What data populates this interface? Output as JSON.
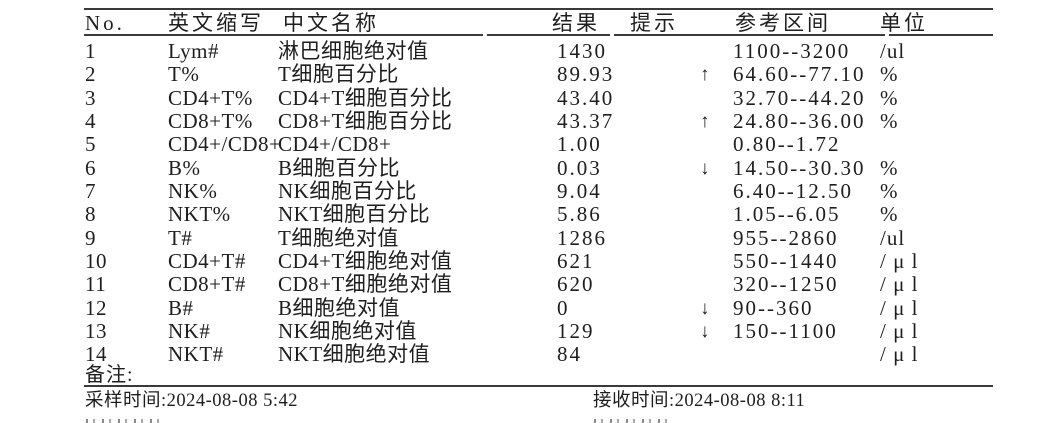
{
  "table": {
    "headers": {
      "no": "No.",
      "abbr": "英文缩写",
      "name": "中文名称",
      "result": "结果",
      "flag": "提示",
      "ref": "参考区间",
      "unit": "单位"
    },
    "rows": [
      {
        "no": "1",
        "abbr": "Lym#",
        "name": "淋巴细胞绝对值",
        "result": "1430",
        "flag": "",
        "ref": "1100--3200",
        "unit": "/ul"
      },
      {
        "no": "2",
        "abbr": "T%",
        "name": "T细胞百分比",
        "result": "89.93",
        "flag": "↑",
        "ref": "64.60--77.10",
        "unit": "%"
      },
      {
        "no": "3",
        "abbr": "CD4+T%",
        "name": "CD4+T细胞百分比",
        "result": "43.40",
        "flag": "",
        "ref": "32.70--44.20",
        "unit": "%"
      },
      {
        "no": "4",
        "abbr": "CD8+T%",
        "name": "CD8+T细胞百分比",
        "result": "43.37",
        "flag": "↑",
        "ref": "24.80--36.00",
        "unit": "%"
      },
      {
        "no": "5",
        "abbr": "CD4+/CD8+",
        "name": "CD4+/CD8+",
        "result": "1.00",
        "flag": "",
        "ref": "0.80--1.72",
        "unit": ""
      },
      {
        "no": "6",
        "abbr": "B%",
        "name": "B细胞百分比",
        "result": "0.03",
        "flag": "↓",
        "ref": "14.50--30.30",
        "unit": "%"
      },
      {
        "no": "7",
        "abbr": "NK%",
        "name": "NK细胞百分比",
        "result": "9.04",
        "flag": "",
        "ref": "6.40--12.50",
        "unit": "%"
      },
      {
        "no": "8",
        "abbr": "NKT%",
        "name": "NKT细胞百分比",
        "result": "5.86",
        "flag": "",
        "ref": "1.05--6.05",
        "unit": "%"
      },
      {
        "no": "9",
        "abbr": "T#",
        "name": "T细胞绝对值",
        "result": "1286",
        "flag": "",
        "ref": "955--2860",
        "unit": "/ul"
      },
      {
        "no": "10",
        "abbr": "CD4+T#",
        "name": "CD4+T细胞绝对值",
        "result": "621",
        "flag": "",
        "ref": "550--1440",
        "unit": "/ μ l"
      },
      {
        "no": "11",
        "abbr": "CD8+T#",
        "name": "CD8+T细胞绝对值",
        "result": "620",
        "flag": "",
        "ref": "320--1250",
        "unit": "/ μ l"
      },
      {
        "no": "12",
        "abbr": "B#",
        "name": "B细胞绝对值",
        "result": "0",
        "flag": "↓",
        "ref": "90--360",
        "unit": "/ μ l"
      },
      {
        "no": "13",
        "abbr": "NK#",
        "name": "NK细胞绝对值",
        "result": "129",
        "flag": "↓",
        "ref": "150--1100",
        "unit": "/ μ l"
      },
      {
        "no": "14",
        "abbr": "NKT#",
        "name": "NKT细胞绝对值",
        "result": "84",
        "flag": "",
        "ref": "",
        "unit": "/ μ l"
      }
    ]
  },
  "remarks_label": "备注:",
  "footer": {
    "sample_time": "采样时间:2024-08-08 5:42",
    "receive_time": "接收时间:2024-08-08 8:11"
  }
}
